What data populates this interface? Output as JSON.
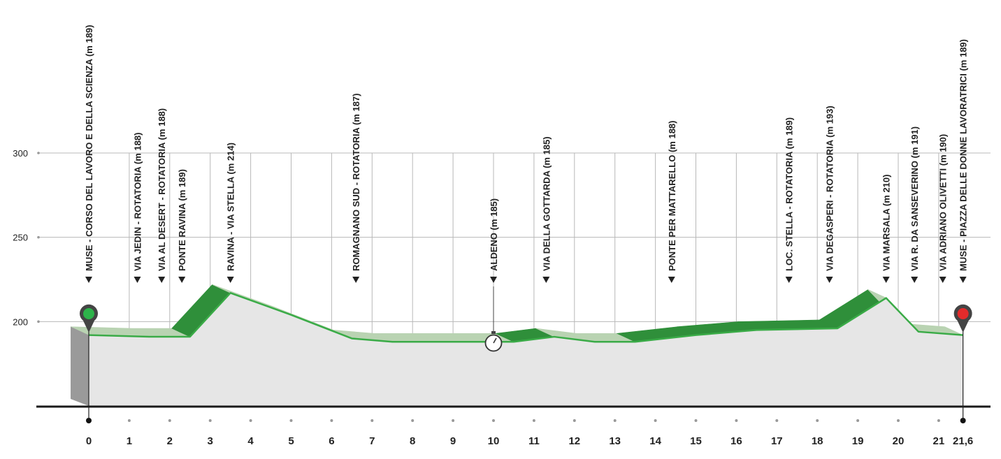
{
  "chart_data": {
    "type": "area",
    "title": "",
    "xlabel": "",
    "ylabel": "",
    "xlim": [
      0,
      21.6
    ],
    "ylim": [
      150,
      300
    ],
    "y_ticks": [
      200,
      250,
      300
    ],
    "x_ticks": [
      "0",
      "1",
      "2",
      "3",
      "4",
      "5",
      "6",
      "7",
      "8",
      "9",
      "10",
      "11",
      "12",
      "13",
      "14",
      "15",
      "16",
      "17",
      "18",
      "19",
      "20",
      "21",
      "21,6"
    ],
    "grid": true,
    "profile": {
      "x": [
        0,
        1.5,
        2.5,
        3.5,
        5,
        6.5,
        7.5,
        8.5,
        9.5,
        10.5,
        11.5,
        12.5,
        13.5,
        15,
        16.5,
        18.5,
        19.7,
        20.5,
        21.6
      ],
      "y": [
        192,
        191,
        191,
        217,
        204,
        190,
        188,
        188,
        188,
        188,
        191,
        188,
        188,
        192,
        195,
        196,
        214,
        194,
        192
      ]
    },
    "start_marker": {
      "x": 0,
      "color": "#2db34a"
    },
    "finish_marker": {
      "x": 21.6,
      "color": "#e32b2b"
    },
    "intermediate": {
      "x": 10,
      "icon": "stopwatch-icon"
    },
    "waypoints": [
      {
        "x": 0,
        "label": "MUSE - CORSO DEL LAVORO E DELLA SCIENZA (m 189)"
      },
      {
        "x": 1.2,
        "label": "VIA JEDIN - ROTATORIA (m 188)"
      },
      {
        "x": 1.8,
        "label": "VIA AL DESERT - ROTATORIA (m 188)"
      },
      {
        "x": 2.3,
        "label": "PONTE RAVINA (m 189)"
      },
      {
        "x": 3.5,
        "label": "RAVINA - VIA STELLA (m 214)"
      },
      {
        "x": 6.6,
        "label": "ROMAGNANO SUD - ROTATORIA (m 187)"
      },
      {
        "x": 10,
        "label": "ALDENO (m 185)"
      },
      {
        "x": 11.3,
        "label": "VIA DELLA GOTTARDA (m 185)"
      },
      {
        "x": 14.4,
        "label": "PONTE PER MATTARELLO (m 188)"
      },
      {
        "x": 17.3,
        "label": "LOC. STELLA - ROTATORIA (m 189)"
      },
      {
        "x": 18.3,
        "label": "VIA DEGASPERI - ROTATORIA (m 193)"
      },
      {
        "x": 19.7,
        "label": "VIA MARSALA (m 210)"
      },
      {
        "x": 20.4,
        "label": "VIA R. DA SANSEVERINO (m 191)"
      },
      {
        "x": 21.1,
        "label": "VIA ADRIANO OLIVETTI (m 190)"
      },
      {
        "x": 21.6,
        "label": "MUSE - PIAZZA DELLE DONNE LAVORATRICI (m 189)"
      }
    ],
    "colors": {
      "line": "#3aab47",
      "fill": "#e6e6e6",
      "side": "#9a9a9a",
      "top_light": "#b9d3b2",
      "top_dark": "#2f8f3a",
      "grid": "#b8b8b8",
      "axis": "#1a1a1a"
    }
  }
}
